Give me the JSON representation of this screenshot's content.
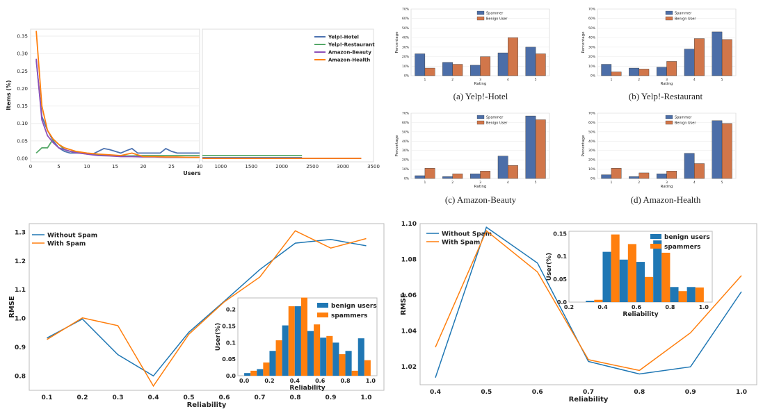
{
  "chart_data": [
    {
      "id": "users-items",
      "type": "line",
      "xlabel": "Users",
      "ylabel": "Items (%)",
      "xlim_left": [
        0,
        30
      ],
      "xlim_right": [
        700,
        3500
      ],
      "ylim": [
        -0.01,
        0.37
      ],
      "xticks_left": [
        "0",
        "5",
        "10",
        "15",
        "20",
        "25",
        "30"
      ],
      "xticks_right": [
        "1000",
        "1500",
        "2000",
        "2500",
        "3000",
        "3500"
      ],
      "yticks": [
        "0.00",
        "0.05",
        "0.10",
        "0.15",
        "0.20",
        "0.25",
        "0.30",
        "0.35"
      ],
      "series": [
        {
          "name": "Yelp!-Hotel",
          "color": "#4c72b0",
          "x": [
            1,
            2,
            3,
            4,
            5,
            6,
            7,
            8,
            9,
            10,
            11,
            12,
            13,
            14,
            15,
            16,
            17,
            18,
            19,
            20,
            21,
            22,
            23,
            24,
            25,
            26,
            27,
            28,
            29,
            30
          ],
          "y": [
            0.28,
            0.12,
            0.08,
            0.05,
            0.03,
            0.02,
            0.015,
            0.015,
            0.015,
            0.012,
            0.012,
            0.02,
            0.028,
            0.025,
            0.02,
            0.015,
            0.022,
            0.028,
            0.015,
            0.015,
            0.015,
            0.015,
            0.015,
            0.028,
            0.02,
            0.015,
            0.015,
            0.015,
            0.015,
            0.015
          ],
          "x_tail": [
            700,
            2330
          ],
          "y_tail": [
            0.002,
            0.002
          ]
        },
        {
          "name": "Yelp!-Restaurant",
          "color": "#55a868",
          "x": [
            1,
            2,
            3,
            4,
            5,
            6,
            7,
            8,
            9,
            10,
            12,
            14,
            16,
            18,
            20,
            22,
            24,
            26,
            28,
            30
          ],
          "y": [
            0.015,
            0.03,
            0.03,
            0.055,
            0.04,
            0.025,
            0.02,
            0.018,
            0.015,
            0.013,
            0.01,
            0.008,
            0.007,
            0.007,
            0.008,
            0.008,
            0.008,
            0.008,
            0.008,
            0.008
          ],
          "x_tail": [
            700,
            2330
          ],
          "y_tail": [
            0.008,
            0.008
          ]
        },
        {
          "name": "Amazon-Beauty",
          "color": "#8c4fb8",
          "x": [
            1,
            2,
            3,
            4,
            5,
            6,
            7,
            8,
            10,
            12,
            14,
            16,
            18,
            20,
            22,
            24,
            26,
            28,
            30
          ],
          "y": [
            0.285,
            0.11,
            0.065,
            0.045,
            0.03,
            0.025,
            0.02,
            0.016,
            0.012,
            0.008,
            0.007,
            0.005,
            0.005,
            0.004,
            0.004,
            0.003,
            0.003,
            0.003,
            0.003
          ],
          "x_tail": [
            700,
            3300
          ],
          "y_tail": [
            0.0,
            0.0
          ]
        },
        {
          "name": "Amazon-Health",
          "color": "#ff7f0e",
          "x": [
            1,
            2,
            3,
            4,
            5,
            6,
            7,
            8,
            10,
            12,
            14,
            16,
            18,
            20,
            22,
            24,
            26,
            28,
            30
          ],
          "y": [
            0.365,
            0.15,
            0.08,
            0.055,
            0.04,
            0.03,
            0.025,
            0.02,
            0.015,
            0.012,
            0.01,
            0.008,
            0.015,
            0.005,
            0.005,
            0.004,
            0.004,
            0.003,
            0.003
          ],
          "x_tail": [
            700,
            3300
          ],
          "y_tail": [
            0.0,
            0.0
          ]
        }
      ]
    },
    {
      "id": "yelp-hotel",
      "type": "bar",
      "caption": "(a) Yelp!-Hotel",
      "xlabel": "Rating",
      "ylabel": "Percentage",
      "categories": [
        "1",
        "2",
        "3",
        "4",
        "5"
      ],
      "yticks": [
        "0%",
        "10%",
        "20%",
        "30%",
        "40%",
        "50%",
        "60%",
        "70%"
      ],
      "ymax": 70,
      "series": [
        {
          "name": "Spammer",
          "color": "#4c6ea8",
          "values": [
            23,
            14,
            11,
            24,
            30
          ]
        },
        {
          "name": "Benign User",
          "color": "#d1764a",
          "values": [
            8,
            12,
            20,
            40,
            23
          ]
        }
      ]
    },
    {
      "id": "yelp-restaurant",
      "type": "bar",
      "caption": "(b) Yelp!-Restaurant",
      "xlabel": "Rating",
      "ylabel": "Percentage",
      "categories": [
        "1",
        "2",
        "3",
        "4",
        "5"
      ],
      "yticks": [
        "0%",
        "10%",
        "20%",
        "30%",
        "40%",
        "50%",
        "60%",
        "70%"
      ],
      "ymax": 70,
      "series": [
        {
          "name": "Spammer",
          "color": "#4c6ea8",
          "values": [
            12,
            8,
            9,
            28,
            46
          ]
        },
        {
          "name": "Benign User",
          "color": "#d1764a",
          "values": [
            4,
            7,
            15,
            39,
            38
          ]
        }
      ]
    },
    {
      "id": "amazon-beauty",
      "type": "bar",
      "caption": "(c) Amazon-Beauty",
      "xlabel": "Rating",
      "ylabel": "Percentage",
      "categories": [
        "1",
        "2",
        "3",
        "4",
        "5"
      ],
      "yticks": [
        "0%",
        "10%",
        "20%",
        "30%",
        "40%",
        "50%",
        "60%",
        "70%"
      ],
      "ymax": 70,
      "series": [
        {
          "name": "Spammer",
          "color": "#4c6ea8",
          "values": [
            3,
            2,
            5,
            24,
            67
          ]
        },
        {
          "name": "Benign User",
          "color": "#d1764a",
          "values": [
            11,
            5,
            8,
            14,
            63
          ]
        }
      ]
    },
    {
      "id": "amazon-health",
      "type": "bar",
      "caption": "(d) Amazon-Health",
      "xlabel": "Rating",
      "ylabel": "Percentage",
      "categories": [
        "1",
        "2",
        "3",
        "4",
        "5"
      ],
      "yticks": [
        "0%",
        "10%",
        "20%",
        "30%",
        "40%",
        "50%",
        "60%",
        "70%"
      ],
      "ymax": 70,
      "series": [
        {
          "name": "Spammer",
          "color": "#4c6ea8",
          "values": [
            4,
            2,
            5,
            27,
            62
          ]
        },
        {
          "name": "Benign User",
          "color": "#d1764a",
          "values": [
            11,
            6,
            8,
            16,
            59
          ]
        }
      ]
    },
    {
      "id": "rmse-left",
      "type": "line",
      "xlabel": "Reliability",
      "ylabel": "RMSE",
      "xlim": [
        0.05,
        1.05
      ],
      "ylim": [
        0.75,
        1.33
      ],
      "xticks": [
        "0.1",
        "0.2",
        "0.3",
        "0.4",
        "0.5",
        "0.6",
        "0.7",
        "0.8",
        "0.9",
        "1.0"
      ],
      "yticks": [
        "0.8",
        "0.9",
        "1.0",
        "1.1",
        "1.2",
        "1.3"
      ],
      "x": [
        0.1,
        0.2,
        0.3,
        0.4,
        0.5,
        0.6,
        0.7,
        0.8,
        0.9,
        1.0
      ],
      "series": [
        {
          "name": "Without Spam",
          "color": "#1f77b4",
          "values": [
            0.932,
            0.998,
            0.874,
            0.8,
            0.952,
            1.06,
            1.17,
            1.262,
            1.275,
            1.253
          ]
        },
        {
          "name": "With Spam",
          "color": "#ff7f0e",
          "values": [
            0.927,
            1.002,
            0.975,
            0.765,
            0.945,
            1.058,
            1.144,
            1.305,
            1.245,
            1.278
          ]
        }
      ],
      "inset": {
        "type": "bar",
        "xlabel": "Reliability",
        "ylabel": "User(%)",
        "xlim": [
          -0.05,
          1.05
        ],
        "ylim": [
          0,
          0.235
        ],
        "xticks": [
          "0.0",
          "0.2",
          "0.4",
          "0.6",
          "0.8",
          "1.0"
        ],
        "yticks": [
          "0.0",
          "0.05",
          "0.1",
          "0.15",
          "0.2"
        ],
        "bins": [
          0.0,
          0.1,
          0.2,
          0.3,
          0.4,
          0.5,
          0.6,
          0.7,
          0.8,
          0.9
        ],
        "series": [
          {
            "name": "benign users",
            "color": "#1f77b4",
            "values": [
              0.008,
              0.02,
              0.075,
              0.152,
              0.21,
              0.135,
              0.115,
              0.1,
              0.075,
              0.113
            ]
          },
          {
            "name": "spammers",
            "color": "#ff7f0e",
            "values": [
              0.015,
              0.04,
              0.107,
              0.21,
              0.236,
              0.155,
              0.12,
              0.065,
              0.015,
              0.047
            ]
          }
        ]
      }
    },
    {
      "id": "rmse-right",
      "type": "line",
      "xlabel": "Reliability",
      "ylabel": "RMSE",
      "xlim": [
        0.37,
        1.03
      ],
      "ylim": [
        1.01,
        1.1
      ],
      "xticks": [
        "0.4",
        "0.5",
        "0.6",
        "0.7",
        "0.8",
        "0.9",
        "1.0"
      ],
      "yticks": [
        "1.02",
        "1.04",
        "1.06",
        "1.08",
        "1.10"
      ],
      "x": [
        0.4,
        0.5,
        0.6,
        0.7,
        0.8,
        0.9,
        1.0
      ],
      "series": [
        {
          "name": "Without Spam",
          "color": "#1f77b4",
          "values": [
            1.014,
            1.098,
            1.078,
            1.023,
            1.016,
            1.02,
            1.062
          ]
        },
        {
          "name": "With Spam",
          "color": "#ff7f0e",
          "values": [
            1.031,
            1.096,
            1.073,
            1.024,
            1.018,
            1.039,
            1.071
          ]
        }
      ],
      "inset": {
        "type": "bar",
        "xlabel": "Reliability",
        "ylabel": "User(%)",
        "xlim": [
          0.2,
          1.05
        ],
        "ylim": [
          0,
          0.155
        ],
        "xticks": [
          "0.2",
          "0.4",
          "0.6",
          "0.8",
          "1.0"
        ],
        "yticks": [
          "0.0",
          "0.05",
          "0.1",
          "0.15"
        ],
        "bins": [
          0.3,
          0.4,
          0.5,
          0.6,
          0.7,
          0.8,
          0.9
        ],
        "series": [
          {
            "name": "benign users",
            "color": "#1f77b4",
            "values": [
              0.003,
              0.11,
              0.093,
              0.088,
              0.135,
              0.033,
              0.033
            ]
          },
          {
            "name": "spammers",
            "color": "#ff7f0e",
            "values": [
              0.005,
              0.148,
              0.127,
              0.055,
              0.108,
              0.024,
              0.032
            ]
          }
        ]
      }
    }
  ]
}
